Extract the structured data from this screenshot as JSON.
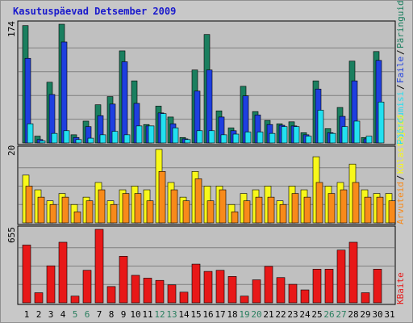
{
  "title": "Kasutuspäevad Detsember 2009",
  "colors": {
    "frame_bg": "#c8c8c8",
    "panel_bg": "#c0c0c0",
    "grid": "#808080",
    "title": "#1a1acc",
    "weekday_text": "#000000",
    "weekend_text": "#2a7f5f",
    "hits": "#1a7f5f",
    "files": "#1e3fe0",
    "pages": "#22e0f0",
    "visits": "#f8f81a",
    "sites": "#f88a1a",
    "kbytes": "#e81818"
  },
  "chart_data": [
    {
      "type": "bar",
      "name": "top-panel",
      "scale_label": "174",
      "ylim": [
        0,
        174
      ],
      "categories": [
        "1",
        "2",
        "3",
        "4",
        "5",
        "6",
        "7",
        "8",
        "9",
        "10",
        "11",
        "12",
        "13",
        "14",
        "15",
        "16",
        "17",
        "18",
        "19",
        "20",
        "21",
        "22",
        "23",
        "24",
        "25",
        "26",
        "27",
        "28",
        "29",
        "30",
        "31"
      ],
      "weekend": [
        5,
        6,
        12,
        13,
        19,
        20,
        26,
        27
      ],
      "legend": [
        {
          "label": "Päringuid",
          "color_key": "hits"
        },
        {
          "label": "Faile",
          "color_key": "files"
        },
        {
          "label": "Pöördumisi",
          "color_key": "pages"
        }
      ],
      "series": [
        {
          "name": "Päringuid",
          "color_key": "hits",
          "values": [
            172,
            10,
            89,
            174,
            12,
            32,
            56,
            68,
            135,
            91,
            27,
            54,
            38,
            8,
            107,
            159,
            47,
            22,
            83,
            46,
            33,
            28,
            31,
            15,
            91,
            21,
            52,
            120,
            8,
            134,
            0
          ]
        },
        {
          "name": "Faile",
          "color_key": "files",
          "values": [
            124,
            5,
            71,
            148,
            8,
            24,
            40,
            57,
            119,
            58,
            25,
            44,
            28,
            6,
            76,
            107,
            38,
            18,
            69,
            41,
            27,
            26,
            25,
            12,
            79,
            15,
            39,
            91,
            6,
            121,
            0
          ]
        },
        {
          "name": "Pöördumisi",
          "color_key": "pages",
          "values": [
            28,
            3,
            14,
            18,
            5,
            7,
            12,
            17,
            12,
            25,
            25,
            43,
            22,
            5,
            18,
            18,
            12,
            13,
            16,
            16,
            14,
            24,
            24,
            10,
            48,
            14,
            24,
            32,
            10,
            60,
            0
          ]
        }
      ]
    },
    {
      "type": "bar",
      "name": "middle-panel",
      "scale_label": "20",
      "ylim": [
        0,
        20
      ],
      "categories": [
        "1",
        "2",
        "3",
        "4",
        "5",
        "6",
        "7",
        "8",
        "9",
        "10",
        "11",
        "12",
        "13",
        "14",
        "15",
        "16",
        "17",
        "18",
        "19",
        "20",
        "21",
        "22",
        "23",
        "24",
        "25",
        "26",
        "27",
        "28",
        "29",
        "30",
        "31"
      ],
      "legend": [
        {
          "label": "Külastajaid",
          "color_key": "visits"
        },
        {
          "label": "Arvuteid",
          "color_key": "sites"
        }
      ],
      "series": [
        {
          "name": "Külastajaid",
          "color_key": "visits",
          "values": [
            13,
            9,
            6,
            8,
            5,
            7,
            11,
            6,
            9,
            10,
            9,
            20,
            11,
            7,
            14,
            10,
            10,
            5,
            8,
            9,
            10,
            6,
            10,
            9,
            18,
            10,
            11,
            16,
            9,
            8,
            8
          ]
        },
        {
          "name": "Arvuteid",
          "color_key": "sites",
          "values": [
            10,
            7,
            5,
            7,
            3,
            6,
            9,
            5,
            8,
            8,
            6,
            14,
            9,
            6,
            12,
            6,
            9,
            3,
            6,
            7,
            7,
            5,
            8,
            7,
            11,
            8,
            9,
            11,
            7,
            7,
            6
          ]
        }
      ]
    },
    {
      "type": "bar",
      "name": "bottom-panel",
      "scale_label": "655",
      "ylim": [
        0,
        655
      ],
      "categories": [
        "1",
        "2",
        "3",
        "4",
        "5",
        "6",
        "7",
        "8",
        "9",
        "10",
        "11",
        "12",
        "13",
        "14",
        "15",
        "16",
        "17",
        "18",
        "19",
        "20",
        "21",
        "22",
        "23",
        "24",
        "25",
        "26",
        "27",
        "28",
        "29",
        "30",
        "31"
      ],
      "legend": [
        {
          "label": "KBaite",
          "color_key": "kbytes"
        }
      ],
      "series": [
        {
          "name": "KBaite",
          "color_key": "kbytes",
          "values": [
            515,
            90,
            330,
            540,
            60,
            290,
            655,
            145,
            415,
            245,
            220,
            200,
            160,
            95,
            345,
            280,
            290,
            235,
            60,
            205,
            325,
            225,
            165,
            115,
            300,
            300,
            470,
            540,
            90,
            300,
            0
          ]
        }
      ]
    }
  ]
}
